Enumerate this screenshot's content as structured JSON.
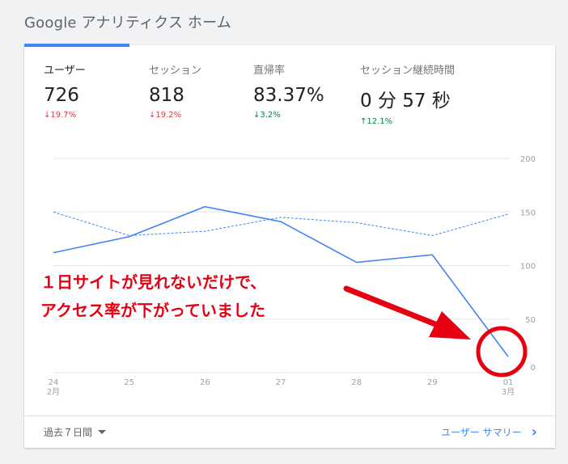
{
  "page": {
    "title": "Google アナリティクス ホーム"
  },
  "metrics": [
    {
      "label": "ユーザー",
      "value": "726",
      "change": "↓19.7%",
      "change_color": "#e53935"
    },
    {
      "label": "セッション",
      "value": "818",
      "change": "↓19.2%",
      "change_color": "#e53935"
    },
    {
      "label": "直帰率",
      "value": "83.37%",
      "change": "↓3.2%",
      "change_color": "#0b8043"
    },
    {
      "label": "セッション継続時間",
      "value": "0 分 57 秒",
      "change": "↑12.1%",
      "change_color": "#0b8043"
    }
  ],
  "chart_data": {
    "type": "line",
    "x": [
      "24",
      "25",
      "26",
      "27",
      "28",
      "29",
      "01"
    ],
    "x_sublabels": {
      "24": "2月",
      "01": "3月"
    },
    "ylim": [
      0,
      200
    ],
    "yticks": [
      "200",
      "150",
      "100",
      "50",
      "0"
    ],
    "series": [
      {
        "values": [
          112,
          127,
          155,
          141,
          103,
          110,
          15
        ],
        "style": "solid",
        "color": "#4285f4"
      },
      {
        "values": [
          150,
          128,
          132,
          145,
          140,
          128,
          148
        ],
        "style": "dashed",
        "color": "#4285f4"
      }
    ],
    "grid": true
  },
  "annotation": {
    "line1": "１日サイトが見れないだけで、",
    "line2": "アクセス率が下がっていました",
    "color": "#e60012"
  },
  "footer": {
    "range_label": "過去７日間",
    "summary_link": "ユーザー サマリー"
  }
}
